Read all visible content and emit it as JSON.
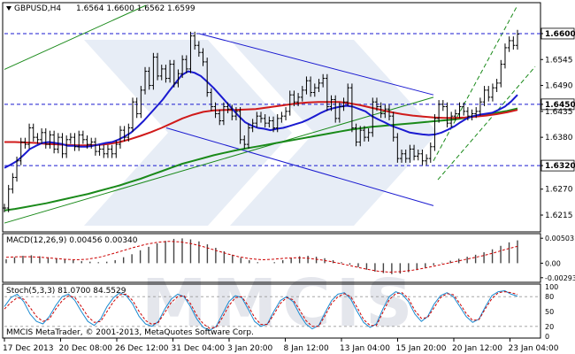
{
  "header": {
    "symbol_tf": "GBPUSD,H4",
    "ohlc": "1.6564 1.6600 1.6562 1.6599"
  },
  "footer": {
    "copyright": "MMCIS MetaTrader, © 2001-2013, MetaQuotes Software Corp."
  },
  "watermark": "MMCIS",
  "colors": {
    "background": "#ffffff",
    "price_line": "#000000",
    "ma_fast": "#1a1ad0",
    "ma_mid": "#d01a1a",
    "ma_slow": "#1a8a1a",
    "channel_up": "#1a8a1a",
    "channel_down": "#1a1ad0",
    "level_line": "#1a1ad0",
    "macd_hist": "#444444",
    "macd_signal": "#cc0000",
    "stoch_main": "#1a8ad0",
    "stoch_signal": "#cc0000",
    "watermark": "#c9d6ea"
  },
  "chart_data": [
    {
      "type": "line",
      "panel": "price",
      "title": "GBPUSD,H4",
      "ylim": [
        1.6185,
        1.666
      ],
      "y_ticks": [
        "1.6600",
        "1.6545",
        "1.6490",
        "1.6450",
        "1.6435",
        "1.6380",
        "1.6320",
        "1.6270",
        "1.6215"
      ],
      "highlighted_levels": [
        "1.6600",
        "1.6450",
        "1.6320"
      ],
      "x_ticks": [
        "17 Dec 2013",
        "20 Dec 08:00",
        "26 Dec 12:00",
        "31 Dec 04:00",
        "3 Jan 20:00",
        "8 Jan 12:00",
        "13 Jan 04:00",
        "15 Jan 20:00",
        "20 Jan 12:00",
        "23 Jan 04:00"
      ],
      "series": [
        {
          "values": [
            1.623,
            1.627,
            1.6295,
            1.633,
            1.637,
            1.6365,
            1.64,
            1.638,
            1.6375,
            1.639,
            1.6365,
            1.6385,
            1.6355,
            1.638,
            1.6345,
            1.6375,
            1.638,
            1.636,
            1.6385,
            1.6375,
            1.6365,
            1.637,
            1.635,
            1.6355,
            1.6345,
            1.6355,
            1.6345,
            1.6365,
            1.6395,
            1.638,
            1.64,
            1.6455,
            1.643,
            1.648,
            1.652,
            1.649,
            1.655,
            1.651,
            1.6525,
            1.6505,
            1.6535,
            1.6495,
            1.6515,
            1.6545,
            1.6525,
            1.6595,
            1.6575,
            1.656,
            1.654,
            1.6475,
            1.6445,
            1.643,
            1.6415,
            1.6445,
            1.644,
            1.6425,
            1.6435,
            1.6375,
            1.6365,
            1.64,
            1.641,
            1.6425,
            1.642,
            1.641,
            1.6415,
            1.64,
            1.642,
            1.6425,
            1.6435,
            1.647,
            1.6455,
            1.6465,
            1.648,
            1.65,
            1.6475,
            1.6485,
            1.6495,
            1.6505,
            1.6445,
            1.646,
            1.642,
            1.6445,
            1.6455,
            1.6485,
            1.64,
            1.637,
            1.6395,
            1.638,
            1.639,
            1.6455,
            1.6445,
            1.643,
            1.644,
            1.6425,
            1.638,
            1.6335,
            1.6345,
            1.6335,
            1.6355,
            1.634,
            1.6345,
            1.633,
            1.6335,
            1.636,
            1.642,
            1.645,
            1.6445,
            1.641,
            1.6425,
            1.643,
            1.6445,
            1.6435,
            1.6425,
            1.643,
            1.6435,
            1.6455,
            1.648,
            1.6465,
            1.6485,
            1.6495,
            1.6535,
            1.657,
            1.6585,
            1.6575,
            1.6599
          ]
        },
        {
          "name": "fast MA",
          "values": [
            1.6315,
            1.6322,
            1.633,
            1.6342,
            1.6355,
            1.6362,
            1.6368,
            1.637,
            1.6368,
            1.6366,
            1.6362,
            1.6362,
            1.636,
            1.636,
            1.6362,
            1.6365,
            1.6368,
            1.637,
            1.6375,
            1.6382,
            1.639,
            1.6402,
            1.6415,
            1.643,
            1.6445,
            1.646,
            1.6478,
            1.6495,
            1.6512,
            1.652,
            1.6517,
            1.651,
            1.6498,
            1.6485,
            1.647,
            1.6455,
            1.644,
            1.6425,
            1.6412,
            1.6405,
            1.64,
            1.6398,
            1.6395,
            1.6398,
            1.64,
            1.6404,
            1.6408,
            1.6412,
            1.6418,
            1.6425,
            1.6432,
            1.6438,
            1.6442,
            1.6445,
            1.6447,
            1.6445,
            1.644,
            1.6435,
            1.6425,
            1.6418,
            1.6412,
            1.6405,
            1.64,
            1.6395,
            1.639,
            1.6388,
            1.6386,
            1.6385,
            1.6386,
            1.639,
            1.6396,
            1.6403,
            1.6412,
            1.642,
            1.6425,
            1.6428,
            1.643,
            1.6432,
            1.6438,
            1.6445,
            1.6456,
            1.647
          ]
        },
        {
          "name": "mid MA",
          "values": [
            1.637,
            1.637,
            1.6369,
            1.6368,
            1.6366,
            1.6365,
            1.6364,
            1.6363,
            1.6363,
            1.6364,
            1.6366,
            1.637,
            1.6376,
            1.6383,
            1.6391,
            1.64,
            1.641,
            1.642,
            1.6428,
            1.6434,
            1.6437,
            1.6438,
            1.6438,
            1.6439,
            1.644,
            1.6443,
            1.6446,
            1.6449,
            1.6452,
            1.6454,
            1.6455,
            1.6455,
            1.6455,
            1.6452,
            1.6448,
            1.6443,
            1.6438,
            1.6433,
            1.6429,
            1.6426,
            1.6424,
            1.6422,
            1.6421,
            1.6421,
            1.6422,
            1.6424,
            1.6426,
            1.6429,
            1.6433,
            1.6438
          ]
        },
        {
          "name": "slow MA",
          "values": [
            1.6225,
            1.6228,
            1.6232,
            1.6236,
            1.624,
            1.6245,
            1.625,
            1.6255,
            1.626,
            1.6266,
            1.6272,
            1.6278,
            1.6285,
            1.6292,
            1.63,
            1.6308,
            1.6316,
            1.6324,
            1.633,
            1.6336,
            1.6342,
            1.6347,
            1.6352,
            1.6356,
            1.636,
            1.6364,
            1.6368,
            1.6372,
            1.6376,
            1.638,
            1.6384,
            1.6388,
            1.6392,
            1.6396,
            1.6399,
            1.6402,
            1.6404,
            1.6406,
            1.6408,
            1.641,
            1.6412,
            1.6414,
            1.6416,
            1.6418,
            1.6421,
            1.6425,
            1.6428,
            1.6432,
            1.6436,
            1.6441
          ]
        }
      ]
    },
    {
      "type": "bar",
      "panel": "macd",
      "title": "MACD(12,26,9) 0.00456 0.00340",
      "ylim": [
        -0.0035,
        0.0056
      ],
      "y_ticks": [
        "0.00503",
        "0.00",
        "-0.00293"
      ],
      "series": [
        {
          "name": "MACD histogram",
          "values": [
            0.0008,
            0.0012,
            0.0015,
            0.0016,
            0.0014,
            0.0012,
            0.001,
            0.0008,
            0.0006,
            0.0004,
            0.0003,
            0.0002,
            0.0003,
            0.0006,
            0.0012,
            0.0018,
            0.0026,
            0.0033,
            0.004,
            0.0045,
            0.0049,
            0.005,
            0.0048,
            0.0044,
            0.0038,
            0.0031,
            0.0024,
            0.0017,
            0.0011,
            0.0006,
            0.0002,
            0.0,
            0.0002,
            0.0006,
            0.001,
            0.0014,
            0.0015,
            0.0013,
            0.001,
            0.0006,
            0.0002,
            -0.0003,
            -0.0008,
            -0.0013,
            -0.0017,
            -0.002,
            -0.0022,
            -0.0021,
            -0.0018,
            -0.0014,
            -0.0009,
            -0.0004,
            0.0001,
            0.0005,
            0.0009,
            0.0013,
            0.0017,
            0.0022,
            0.0028,
            0.0035,
            0.0042,
            0.0046
          ]
        },
        {
          "name": "MACD signal",
          "values": [
            0.0012,
            0.0013,
            0.0013,
            0.0012,
            0.001,
            0.0008,
            0.0007,
            0.0008,
            0.0012,
            0.0018,
            0.0025,
            0.0032,
            0.0038,
            0.0042,
            0.0044,
            0.0043,
            0.0039,
            0.0033,
            0.0026,
            0.0019,
            0.0013,
            0.0009,
            0.0007,
            0.0008,
            0.001,
            0.0011,
            0.001,
            0.0007,
            0.0003,
            -0.0002,
            -0.0007,
            -0.0012,
            -0.0016,
            -0.0018,
            -0.0017,
            -0.0014,
            -0.001,
            -0.0005,
            0.0,
            0.0005,
            0.001,
            0.0015,
            0.0021,
            0.0028,
            0.0034
          ]
        }
      ]
    },
    {
      "type": "line",
      "panel": "stochastic",
      "title": "Stoch(5,3,3) 81.0700 84.5529",
      "ylim": [
        0,
        100
      ],
      "y_ticks": [
        "100",
        "80",
        "50",
        "20",
        "0"
      ],
      "series": [
        {
          "name": "Stoch main",
          "values": [
            60,
            78,
            85,
            70,
            45,
            30,
            25,
            40,
            62,
            80,
            85,
            72,
            50,
            30,
            22,
            35,
            60,
            78,
            88,
            82,
            65,
            40,
            25,
            20,
            30,
            55,
            75,
            85,
            80,
            60,
            35,
            18,
            12,
            20,
            45,
            70,
            82,
            78,
            55,
            30,
            20,
            25,
            50,
            72,
            80,
            70,
            45,
            25,
            15,
            22,
            48,
            72,
            85,
            88,
            75,
            50,
            28,
            18,
            25,
            55,
            80,
            90,
            85,
            70,
            45,
            30,
            40,
            65,
            82,
            88,
            80,
            60,
            40,
            28,
            35,
            60,
            82,
            90,
            92,
            85,
            81
          ]
        },
        {
          "name": "Stoch signal",
          "values": [
            55,
            68,
            78,
            75,
            58,
            40,
            30,
            35,
            55,
            72,
            82,
            78,
            60,
            40,
            28,
            30,
            50,
            70,
            84,
            85,
            72,
            50,
            32,
            24,
            28,
            48,
            68,
            80,
            82,
            66,
            42,
            25,
            16,
            18,
            38,
            62,
            78,
            80,
            62,
            38,
            24,
            24,
            44,
            66,
            78,
            74,
            54,
            32,
            20,
            20,
            42,
            66,
            80,
            86,
            80,
            58,
            34,
            22,
            22,
            48,
            74,
            86,
            88,
            76,
            52,
            36,
            38,
            58,
            78,
            86,
            84,
            66,
            46,
            32,
            34,
            56,
            76,
            88,
            90,
            88,
            84.5
          ]
        }
      ]
    }
  ]
}
